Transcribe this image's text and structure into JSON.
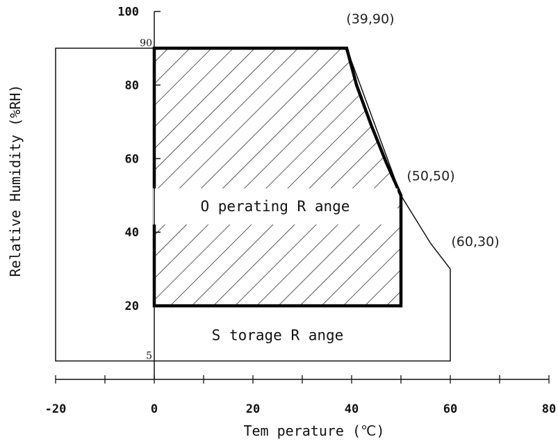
{
  "chart_data": {
    "type": "area",
    "xlabel": "Tem perature (℃)",
    "ylabel": "Relative Humidity (%RH)",
    "xlim": [
      -20,
      80
    ],
    "ylim": [
      0,
      100
    ],
    "x_ticks": [
      -20,
      0,
      20,
      40,
      60,
      80
    ],
    "x_minor_step": 10,
    "y_ticks": [
      20,
      40,
      60,
      80,
      100
    ],
    "y_extra_labels": [
      {
        "value": 90,
        "text": "90"
      },
      {
        "value": 5,
        "text": "5"
      }
    ],
    "regions": [
      {
        "name": "Storage Range",
        "label": "S torage R ange",
        "label_at": {
          "x": 25,
          "y": 12
        },
        "fill": "none",
        "stroke": "#111111",
        "polygon": [
          [
            -20,
            90
          ],
          [
            39,
            90
          ],
          [
            50,
            50
          ],
          [
            56,
            37
          ],
          [
            60,
            30
          ],
          [
            60,
            5
          ],
          [
            -20,
            5
          ]
        ]
      },
      {
        "name": "Operating Range",
        "label": "O perating R ange",
        "label_at": {
          "x": 24.5,
          "y": 47
        },
        "fill": "hatch",
        "stroke": "#000000",
        "polygon": [
          [
            0,
            90
          ],
          [
            39,
            90
          ],
          [
            41,
            80
          ],
          [
            44,
            69
          ],
          [
            47,
            59
          ],
          [
            50,
            50
          ],
          [
            50,
            20
          ],
          [
            0,
            20
          ]
        ]
      }
    ],
    "annotations": [
      {
        "text": "(39,90)",
        "x": 39,
        "y": 90
      },
      {
        "text": "(50,50)",
        "x": 50,
        "y": 50
      },
      {
        "text": "(60,30)",
        "x": 60,
        "y": 30
      }
    ]
  }
}
